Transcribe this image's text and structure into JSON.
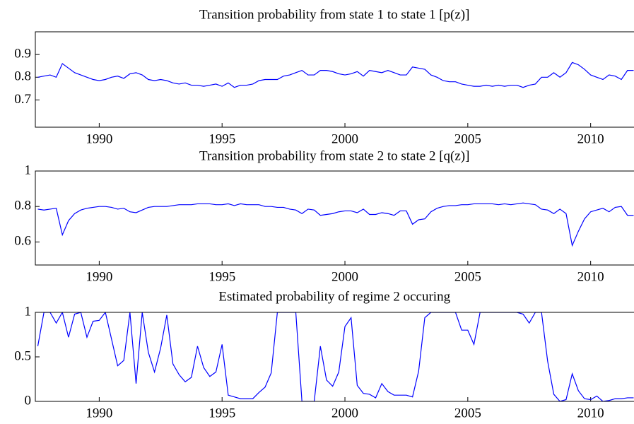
{
  "chart_data": [
    {
      "type": "line",
      "title": "Transition probability from state 1 to state 1 [p(z)]",
      "xlim": [
        1987.4,
        2011.75
      ],
      "xticks": [
        1990,
        1995,
        2000,
        2005,
        2010
      ],
      "ylim": [
        0.58,
        1.0
      ],
      "yticks": [
        0.7,
        0.8,
        0.9
      ],
      "x": [
        1987.5,
        1987.75,
        1988,
        1988.25,
        1988.5,
        1988.75,
        1989,
        1989.25,
        1989.5,
        1989.75,
        1990,
        1990.25,
        1990.5,
        1990.75,
        1991,
        1991.25,
        1991.5,
        1991.75,
        1992,
        1992.25,
        1992.5,
        1992.75,
        1993,
        1993.25,
        1993.5,
        1993.75,
        1994,
        1994.25,
        1994.5,
        1994.75,
        1995,
        1995.25,
        1995.5,
        1995.75,
        1996,
        1996.25,
        1996.5,
        1996.75,
        1997,
        1997.25,
        1997.5,
        1997.75,
        1998,
        1998.25,
        1998.5,
        1998.75,
        1999,
        1999.25,
        1999.5,
        1999.75,
        2000,
        2000.25,
        2000.5,
        2000.75,
        2001,
        2001.25,
        2001.5,
        2001.75,
        2002,
        2002.25,
        2002.5,
        2002.75,
        2003,
        2003.25,
        2003.5,
        2003.75,
        2004,
        2004.25,
        2004.5,
        2004.75,
        2005,
        2005.25,
        2005.5,
        2005.75,
        2006,
        2006.25,
        2006.5,
        2006.75,
        2007,
        2007.25,
        2007.5,
        2007.75,
        2008,
        2008.25,
        2008.5,
        2008.75,
        2009,
        2009.25,
        2009.5,
        2009.75,
        2010,
        2010.25,
        2010.5,
        2010.75,
        2011,
        2011.25,
        2011.5,
        2011.75
      ],
      "series": [
        {
          "color": "#0000ff",
          "values": [
            0.8,
            0.805,
            0.81,
            0.8,
            0.86,
            0.84,
            0.82,
            0.81,
            0.8,
            0.79,
            0.785,
            0.79,
            0.8,
            0.805,
            0.795,
            0.815,
            0.82,
            0.81,
            0.79,
            0.785,
            0.79,
            0.785,
            0.775,
            0.77,
            0.775,
            0.765,
            0.765,
            0.76,
            0.765,
            0.77,
            0.76,
            0.775,
            0.755,
            0.765,
            0.765,
            0.77,
            0.785,
            0.79,
            0.79,
            0.79,
            0.805,
            0.81,
            0.82,
            0.83,
            0.81,
            0.81,
            0.83,
            0.83,
            0.825,
            0.815,
            0.81,
            0.815,
            0.825,
            0.805,
            0.83,
            0.825,
            0.82,
            0.83,
            0.82,
            0.81,
            0.81,
            0.845,
            0.84,
            0.835,
            0.81,
            0.8,
            0.785,
            0.78,
            0.78,
            0.77,
            0.765,
            0.76,
            0.76,
            0.765,
            0.76,
            0.765,
            0.76,
            0.765,
            0.765,
            0.755,
            0.765,
            0.77,
            0.8,
            0.8,
            0.82,
            0.8,
            0.82,
            0.865,
            0.855,
            0.835,
            0.81,
            0.8,
            0.79,
            0.81,
            0.805,
            0.79,
            0.83,
            0.83
          ]
        }
      ]
    },
    {
      "type": "line",
      "title": "Transition probability from state 2 to state 2 [q(z)]",
      "xlim": [
        1987.4,
        2011.75
      ],
      "xticks": [
        1990,
        1995,
        2000,
        2005,
        2010
      ],
      "ylim": [
        0.47,
        1.0
      ],
      "yticks": [
        0.6,
        0.8,
        1
      ],
      "x": [
        1987.5,
        1987.75,
        1988,
        1988.25,
        1988.5,
        1988.75,
        1989,
        1989.25,
        1989.5,
        1989.75,
        1990,
        1990.25,
        1990.5,
        1990.75,
        1991,
        1991.25,
        1991.5,
        1991.75,
        1992,
        1992.25,
        1992.5,
        1992.75,
        1993,
        1993.25,
        1993.5,
        1993.75,
        1994,
        1994.25,
        1994.5,
        1994.75,
        1995,
        1995.25,
        1995.5,
        1995.75,
        1996,
        1996.25,
        1996.5,
        1996.75,
        1997,
        1997.25,
        1997.5,
        1997.75,
        1998,
        1998.25,
        1998.5,
        1998.75,
        1999,
        1999.25,
        1999.5,
        1999.75,
        2000,
        2000.25,
        2000.5,
        2000.75,
        2001,
        2001.25,
        2001.5,
        2001.75,
        2002,
        2002.25,
        2002.5,
        2002.75,
        2003,
        2003.25,
        2003.5,
        2003.75,
        2004,
        2004.25,
        2004.5,
        2004.75,
        2005,
        2005.25,
        2005.5,
        2005.75,
        2006,
        2006.25,
        2006.5,
        2006.75,
        2007,
        2007.25,
        2007.5,
        2007.75,
        2008,
        2008.25,
        2008.5,
        2008.75,
        2009,
        2009.25,
        2009.5,
        2009.75,
        2010,
        2010.25,
        2010.5,
        2010.75,
        2011,
        2011.25,
        2011.5,
        2011.75
      ],
      "series": [
        {
          "color": "#0000ff",
          "values": [
            0.785,
            0.78,
            0.785,
            0.79,
            0.64,
            0.72,
            0.76,
            0.78,
            0.79,
            0.795,
            0.8,
            0.8,
            0.795,
            0.785,
            0.79,
            0.77,
            0.765,
            0.78,
            0.795,
            0.8,
            0.8,
            0.8,
            0.805,
            0.81,
            0.81,
            0.81,
            0.815,
            0.815,
            0.815,
            0.81,
            0.81,
            0.815,
            0.805,
            0.815,
            0.81,
            0.81,
            0.81,
            0.8,
            0.8,
            0.795,
            0.795,
            0.785,
            0.78,
            0.76,
            0.785,
            0.78,
            0.75,
            0.755,
            0.76,
            0.77,
            0.775,
            0.775,
            0.765,
            0.785,
            0.755,
            0.755,
            0.765,
            0.76,
            0.75,
            0.775,
            0.775,
            0.7,
            0.725,
            0.73,
            0.77,
            0.79,
            0.8,
            0.805,
            0.805,
            0.81,
            0.81,
            0.815,
            0.815,
            0.815,
            0.815,
            0.81,
            0.815,
            0.81,
            0.815,
            0.82,
            0.815,
            0.81,
            0.785,
            0.78,
            0.76,
            0.785,
            0.76,
            0.58,
            0.66,
            0.73,
            0.77,
            0.78,
            0.79,
            0.77,
            0.795,
            0.8,
            0.75,
            0.75
          ]
        }
      ]
    },
    {
      "type": "line",
      "title": "Estimated probability of regime 2 occuring",
      "xlim": [
        1987.4,
        2011.75
      ],
      "xticks": [
        1990,
        1995,
        2000,
        2005,
        2010
      ],
      "ylim": [
        0,
        1
      ],
      "yticks": [
        0,
        0.5,
        1
      ],
      "x": [
        1987.5,
        1987.75,
        1988,
        1988.25,
        1988.5,
        1988.75,
        1989,
        1989.25,
        1989.5,
        1989.75,
        1990,
        1990.25,
        1990.5,
        1990.75,
        1991,
        1991.25,
        1991.5,
        1991.75,
        1992,
        1992.25,
        1992.5,
        1992.75,
        1993,
        1993.25,
        1993.5,
        1993.75,
        1994,
        1994.25,
        1994.5,
        1994.75,
        1995,
        1995.25,
        1995.5,
        1995.75,
        1996,
        1996.25,
        1996.5,
        1996.75,
        1997,
        1997.25,
        1997.5,
        1997.75,
        1998,
        1998.25,
        1998.5,
        1998.75,
        1999,
        1999.25,
        1999.5,
        1999.75,
        2000,
        2000.25,
        2000.5,
        2000.75,
        2001,
        2001.25,
        2001.5,
        2001.75,
        2002,
        2002.25,
        2002.5,
        2002.75,
        2003,
        2003.25,
        2003.5,
        2003.75,
        2004,
        2004.25,
        2004.5,
        2004.75,
        2005,
        2005.25,
        2005.5,
        2005.75,
        2006,
        2006.25,
        2006.5,
        2006.75,
        2007,
        2007.25,
        2007.5,
        2007.75,
        2008,
        2008.25,
        2008.5,
        2008.75,
        2009,
        2009.25,
        2009.5,
        2009.75,
        2010,
        2010.25,
        2010.5,
        2010.75,
        2011,
        2011.25,
        2011.5,
        2011.75
      ],
      "series": [
        {
          "color": "#0000ff",
          "values": [
            0.62,
            1.0,
            1.0,
            0.88,
            1.0,
            0.72,
            0.98,
            1.0,
            0.72,
            0.9,
            0.91,
            1.0,
            0.7,
            0.4,
            0.46,
            1.0,
            0.2,
            1.0,
            0.55,
            0.33,
            0.6,
            0.97,
            0.42,
            0.3,
            0.22,
            0.27,
            0.62,
            0.38,
            0.28,
            0.33,
            0.64,
            0.07,
            0.05,
            0.03,
            0.03,
            0.03,
            0.1,
            0.16,
            0.32,
            1.0,
            1.0,
            1.0,
            1.0,
            0.0,
            0.0,
            0.0,
            0.62,
            0.24,
            0.17,
            0.33,
            0.84,
            0.94,
            0.18,
            0.09,
            0.08,
            0.04,
            0.2,
            0.11,
            0.07,
            0.07,
            0.07,
            0.05,
            0.34,
            0.94,
            1.0,
            1.0,
            1.0,
            1.0,
            1.0,
            0.8,
            0.8,
            0.64,
            1.0,
            1.0,
            1.0,
            1.0,
            1.0,
            1.0,
            1.0,
            0.98,
            0.88,
            1.0,
            1.0,
            0.45,
            0.08,
            0.0,
            0.02,
            0.31,
            0.12,
            0.03,
            0.02,
            0.06,
            0.0,
            0.01,
            0.03,
            0.03,
            0.04,
            0.04
          ]
        }
      ]
    }
  ]
}
